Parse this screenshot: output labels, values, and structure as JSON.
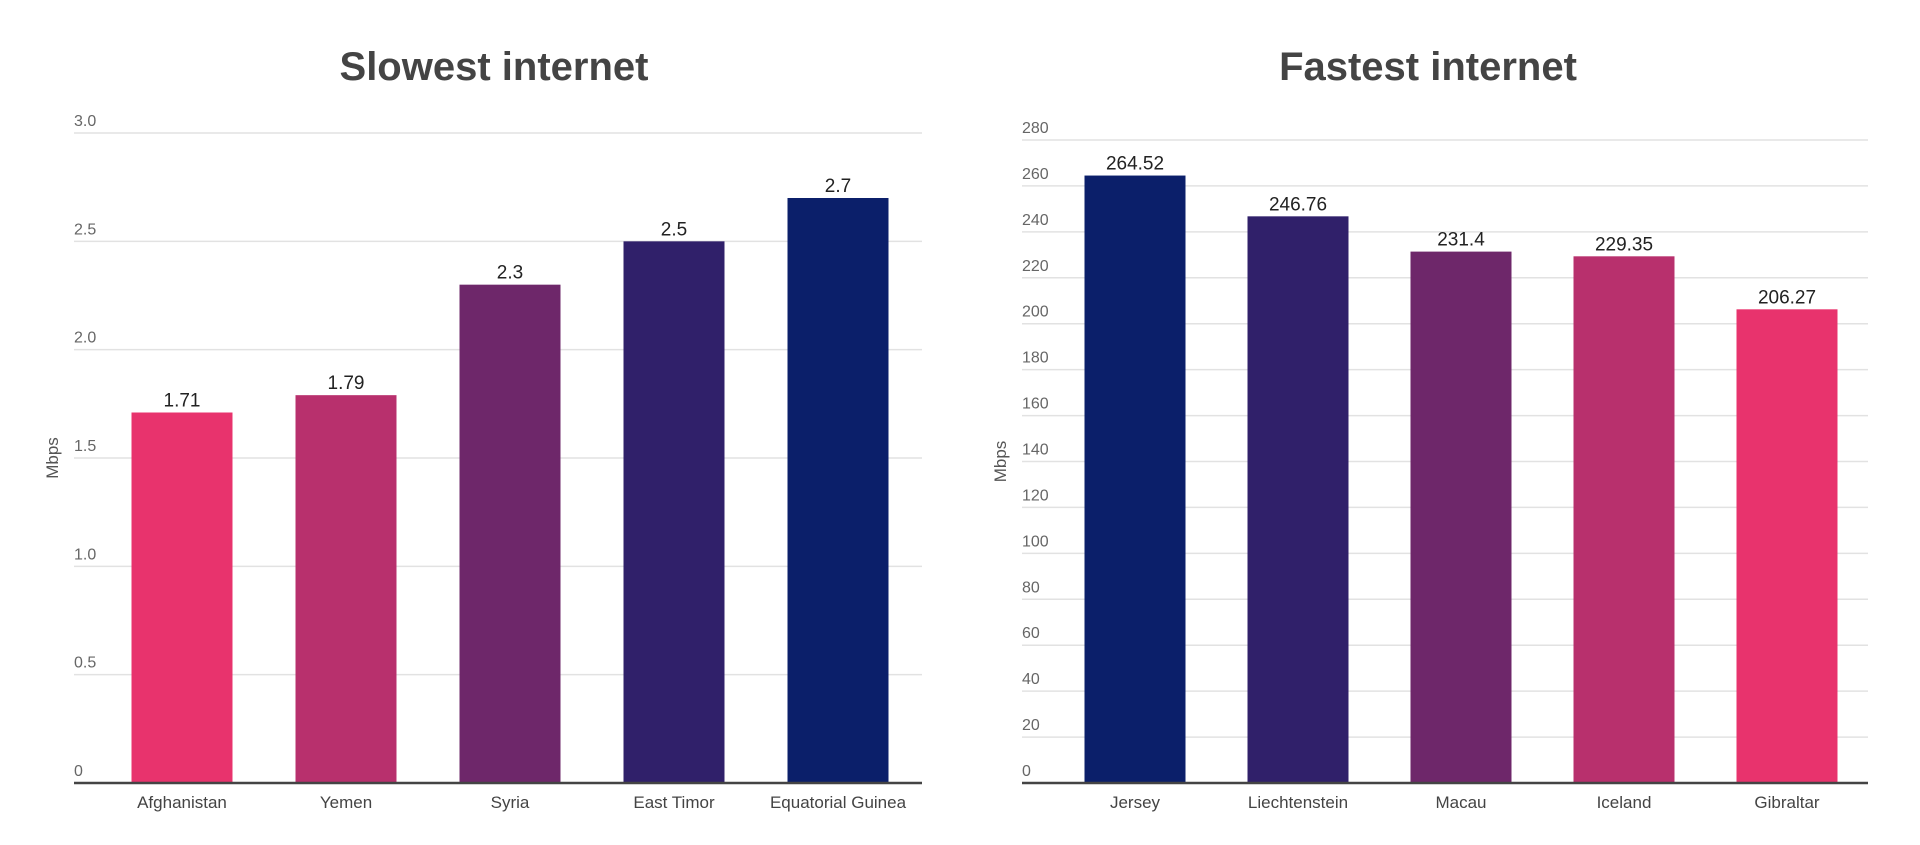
{
  "chart_data": [
    {
      "type": "bar",
      "title": "Slowest internet",
      "ylabel": "Mbps",
      "xlabel": "",
      "categories": [
        "Afghanistan",
        "Yemen",
        "Syria",
        "East Timor",
        "Equatorial Guinea"
      ],
      "values": [
        1.71,
        1.79,
        2.3,
        2.5,
        2.7
      ],
      "value_labels": [
        "1.71",
        "1.79",
        "2.3",
        "2.5",
        "2.7"
      ],
      "colors": [
        "#e8336d",
        "#b8306d",
        "#6e276a",
        "#30206a",
        "#0b1f6a"
      ],
      "ylim": [
        0,
        3.0
      ],
      "yticks": [
        0,
        0.5,
        1.0,
        1.5,
        2.0,
        2.5,
        3.0
      ],
      "ytick_labels": [
        "0",
        "0.5",
        "1.0",
        "1.5",
        "2.0",
        "2.5",
        "3.0"
      ],
      "grid": true,
      "legend": "none"
    },
    {
      "type": "bar",
      "title": "Fastest internet",
      "ylabel": "Mbps",
      "xlabel": "",
      "categories": [
        "Jersey",
        "Liechtenstein",
        "Macau",
        "Iceland",
        "Gibraltar"
      ],
      "values": [
        264.52,
        246.76,
        231.4,
        229.35,
        206.27
      ],
      "value_labels": [
        "264.52",
        "246.76",
        "231.4",
        "229.35",
        "206.27"
      ],
      "colors": [
        "#0b1f6a",
        "#30206a",
        "#6e276a",
        "#b8306d",
        "#e8336d"
      ],
      "ylim": [
        0,
        280
      ],
      "yticks": [
        0,
        20,
        40,
        60,
        80,
        100,
        120,
        140,
        160,
        180,
        200,
        220,
        240,
        260,
        280
      ],
      "ytick_labels": [
        "0",
        "20",
        "40",
        "60",
        "80",
        "100",
        "120",
        "140",
        "160",
        "180",
        "200",
        "220",
        "240",
        "260",
        "280"
      ],
      "grid": true,
      "legend": "none"
    }
  ]
}
